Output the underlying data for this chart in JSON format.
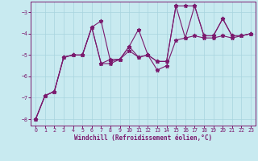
{
  "xlabel": "Windchill (Refroidissement éolien,°C)",
  "background_color": "#c8eaf0",
  "line_color": "#7b1a6e",
  "grid_color": "#a8d4de",
  "xlim": [
    -0.5,
    23.5
  ],
  "ylim": [
    -8.3,
    -2.5
  ],
  "yticks": [
    -8,
    -7,
    -6,
    -5,
    -4,
    -3
  ],
  "xticks": [
    0,
    1,
    2,
    3,
    4,
    5,
    6,
    7,
    8,
    9,
    10,
    11,
    12,
    13,
    14,
    15,
    16,
    17,
    18,
    19,
    20,
    21,
    22,
    23
  ],
  "series_x": [
    0,
    1,
    2,
    3,
    4,
    5,
    6,
    7,
    8,
    9,
    10,
    11,
    12,
    13,
    14,
    15,
    16,
    17,
    18,
    19,
    20,
    21,
    22,
    23
  ],
  "series": [
    [
      -8.0,
      -6.9,
      -6.7,
      -5.1,
      -5.0,
      -5.0,
      -3.7,
      -3.4,
      -5.3,
      -5.2,
      -4.6,
      -5.1,
      -5.0,
      -5.3,
      -5.3,
      -2.7,
      -2.7,
      -2.7,
      -4.1,
      -4.1,
      -3.3,
      -4.1,
      -4.1,
      -4.0
    ],
    [
      -8.0,
      -6.9,
      -6.7,
      -5.1,
      -5.0,
      -5.0,
      -3.7,
      -5.4,
      -5.4,
      -5.2,
      -4.6,
      -3.8,
      -5.0,
      -5.3,
      -5.3,
      -2.7,
      -4.2,
      -2.7,
      -4.1,
      -4.1,
      -3.3,
      -4.1,
      -4.1,
      -4.0
    ],
    [
      -8.0,
      -6.9,
      -6.7,
      -5.1,
      -5.0,
      -5.0,
      -3.7,
      -5.4,
      -5.2,
      -5.2,
      -4.8,
      -5.1,
      -5.0,
      -5.7,
      -5.5,
      -4.3,
      -4.2,
      -4.1,
      -4.2,
      -4.2,
      -4.1,
      -4.2,
      -4.1,
      -4.0
    ]
  ],
  "xlabel_fontsize": 5.5,
  "tick_fontsize": 4.8,
  "marker_size": 3.5,
  "linewidth": 0.8
}
